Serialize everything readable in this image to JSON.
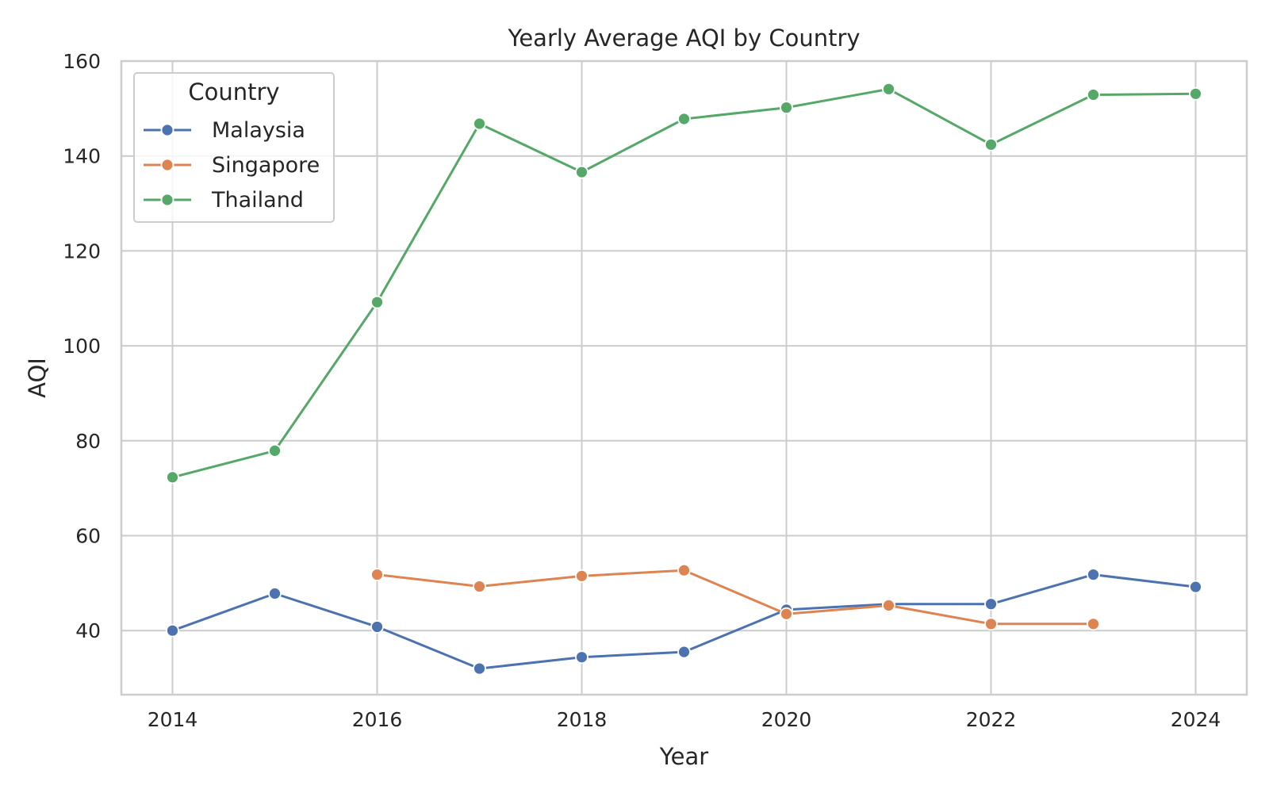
{
  "chart_data": {
    "type": "line",
    "title": "Yearly Average AQI by Country",
    "xlabel": "Year",
    "ylabel": "AQI",
    "xlim": [
      2013.5,
      2024.5
    ],
    "ylim": [
      26.5,
      160
    ],
    "x_ticks": [
      2014,
      2016,
      2018,
      2020,
      2022,
      2024
    ],
    "y_ticks": [
      40,
      60,
      80,
      100,
      120,
      140,
      160
    ],
    "grid": true,
    "legend": {
      "title": "Country",
      "placement": "top-left"
    },
    "series": [
      {
        "name": "Malaysia",
        "color": "#4c72b0",
        "points": [
          {
            "x": 2014,
            "y": 40.0
          },
          {
            "x": 2015,
            "y": 47.8
          },
          {
            "x": 2016,
            "y": 40.8
          },
          {
            "x": 2017,
            "y": 32.0
          },
          {
            "x": 2018,
            "y": 34.4
          },
          {
            "x": 2019,
            "y": 35.5
          },
          {
            "x": 2020,
            "y": 44.4
          },
          {
            "x": 2021,
            "y": 45.6
          },
          {
            "x": 2022,
            "y": 45.6
          },
          {
            "x": 2023,
            "y": 51.8
          },
          {
            "x": 2024,
            "y": 49.2
          }
        ]
      },
      {
        "name": "Singapore",
        "color": "#dd8452",
        "points": [
          {
            "x": 2016,
            "y": 51.8
          },
          {
            "x": 2017,
            "y": 49.3
          },
          {
            "x": 2018,
            "y": 51.5
          },
          {
            "x": 2019,
            "y": 52.7
          },
          {
            "x": 2020,
            "y": 43.5
          },
          {
            "x": 2021,
            "y": 45.3
          },
          {
            "x": 2022,
            "y": 41.4
          },
          {
            "x": 2023,
            "y": 41.4
          }
        ]
      },
      {
        "name": "Thailand",
        "color": "#55a868",
        "points": [
          {
            "x": 2014,
            "y": 72.3
          },
          {
            "x": 2015,
            "y": 77.9
          },
          {
            "x": 2016,
            "y": 109.2
          },
          {
            "x": 2017,
            "y": 146.8
          },
          {
            "x": 2018,
            "y": 136.6
          },
          {
            "x": 2019,
            "y": 147.8
          },
          {
            "x": 2020,
            "y": 150.2
          },
          {
            "x": 2021,
            "y": 154.1
          },
          {
            "x": 2022,
            "y": 142.4
          },
          {
            "x": 2023,
            "y": 152.9
          },
          {
            "x": 2024,
            "y": 153.1
          }
        ]
      }
    ]
  }
}
